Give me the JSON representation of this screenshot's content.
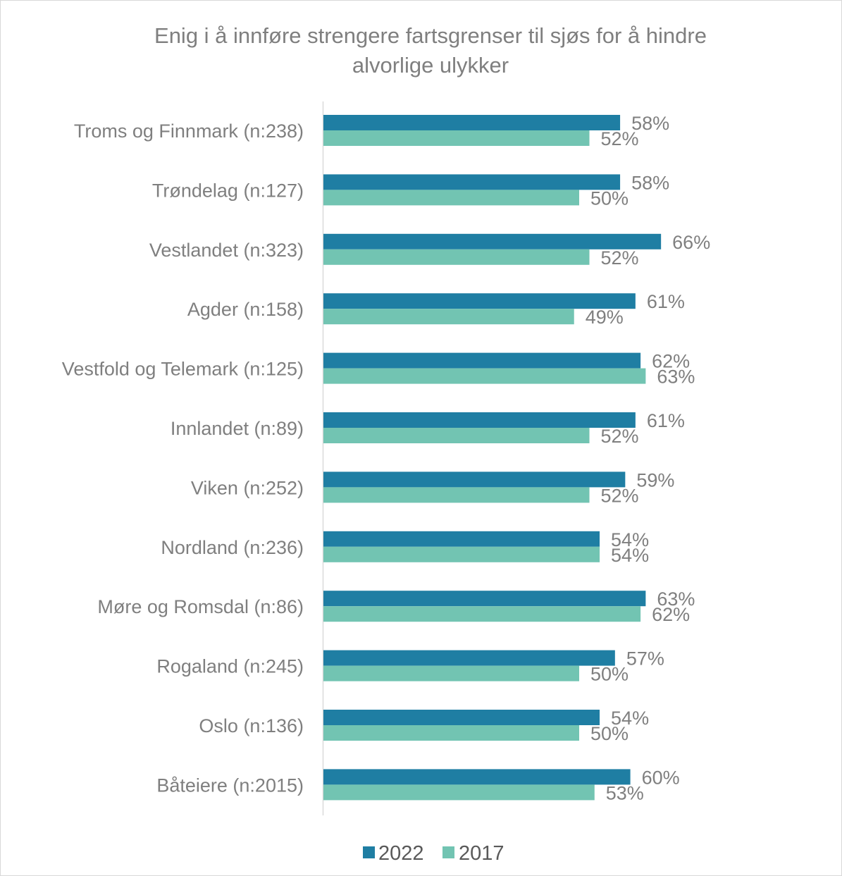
{
  "chart_data": {
    "type": "bar",
    "orientation": "horizontal",
    "title": "Enig i å innføre strengere fartsgrenser til sjøs for å hindre alvorlige ulykker",
    "title_lines": [
      "Enig i å innføre strengere fartsgrenser til sjøs for å hindre",
      "alvorlige ulykker"
    ],
    "categories": [
      "Troms og Finnmark (n:238)",
      "Trøndelag (n:127)",
      "Vestlandet (n:323)",
      "Agder (n:158)",
      "Vestfold og Telemark (n:125)",
      "Innlandet (n:89)",
      "Viken (n:252)",
      "Nordland (n:236)",
      "Møre og Romsdal (n:86)",
      "Rogaland (n:245)",
      "Oslo (n:136)",
      "Båteiere (n:2015)"
    ],
    "series": [
      {
        "name": "2022",
        "color": "#1f7ea3",
        "values": [
          58,
          58,
          66,
          61,
          62,
          61,
          59,
          54,
          63,
          57,
          54,
          60
        ],
        "labels": [
          "58%",
          "58%",
          "66%",
          "61%",
          "62%",
          "61%",
          "59%",
          "54%",
          "63%",
          "57%",
          "54%",
          "60%"
        ]
      },
      {
        "name": "2017",
        "color": "#72c4b2",
        "values": [
          52,
          50,
          52,
          49,
          63,
          52,
          52,
          54,
          62,
          50,
          50,
          53
        ],
        "labels": [
          "52%",
          "50%",
          "52%",
          "49%",
          "63%",
          "52%",
          "52%",
          "54%",
          "62%",
          "50%",
          "50%",
          "53%"
        ]
      }
    ],
    "xlim": [
      0,
      100
    ],
    "unit": "%",
    "grid": false,
    "legend": "bottom",
    "xlabel": "",
    "ylabel": ""
  },
  "colors": {
    "title": "#7f7f7f",
    "category_labels": "#7f7f7f",
    "data_labels": "#7f7f7f",
    "legend_text": "#595959",
    "axis_line": "#d9d9d9",
    "frame": "#d9d9d9"
  }
}
